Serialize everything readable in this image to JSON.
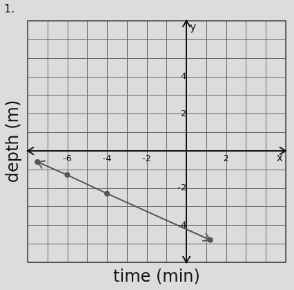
{
  "chart_data": {
    "type": "line",
    "title": "1.",
    "xlabel": "time (min)",
    "ylabel": "depth (m)",
    "annotations": [
      "x",
      "y"
    ],
    "series": [
      {
        "name": "depth",
        "color": "#555555",
        "marker": "circle",
        "line_style": "solid",
        "x": [
          -7.5,
          -6,
          -4,
          1.2
        ],
        "values": [
          -0.6,
          -1.3,
          -2.3,
          -4.8
        ]
      }
    ],
    "xlim": [
      -8,
      5
    ],
    "ylim": [
      -6,
      7
    ],
    "xticks": [
      -6,
      -4,
      -2,
      2
    ],
    "yticks": [
      -4,
      -2,
      2,
      4
    ],
    "grid": true
  }
}
